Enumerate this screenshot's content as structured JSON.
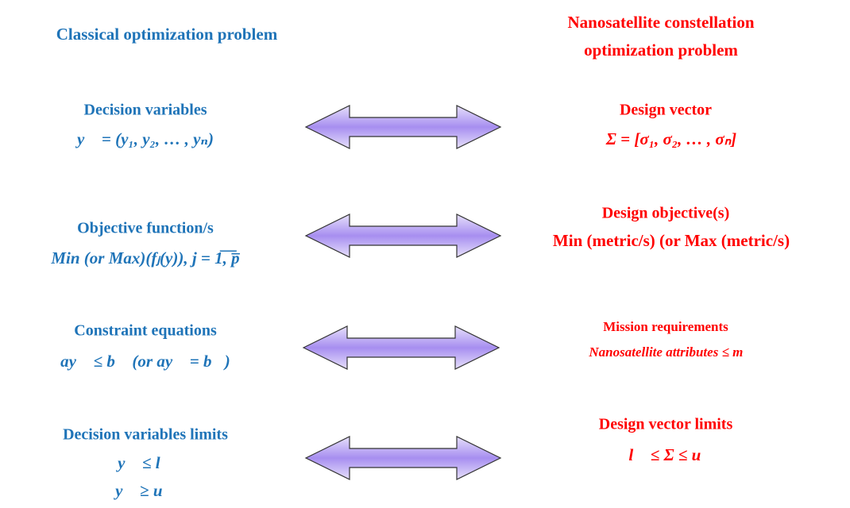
{
  "left_header": "Classical optimization problem",
  "right_header": [
    "Nanosatellite constellation",
    "optimization problem"
  ],
  "rows": [
    {
      "left": {
        "title": "Decision variables",
        "formula": [
          "y⃗ = (y₁, y₂, … , yₙ)"
        ]
      },
      "right": {
        "title": "Design vector",
        "formula": [
          "Σ = [σ₁, σ₂, … , σₙ]"
        ]
      }
    },
    {
      "left": {
        "title": "Objective function/s",
        "formula": [
          "Min (or Max)(fⱼ(y)), j = 1̅,̅ ̅p̅"
        ]
      },
      "right": {
        "title": "Design objective(s)",
        "formula": [
          "Min (metric/s) (or Max (metric/s)"
        ]
      }
    },
    {
      "left": {
        "title": "Constraint equations",
        "formula": [
          "ay⃗ ≤ b⃗ (or ay⃗ = b⃗)"
        ]
      },
      "right": {
        "title": "Mission requirements",
        "formula": [
          "Nanosatellite attributes ≤ m⃗"
        ]
      }
    },
    {
      "left": {
        "title": "Decision variables limits",
        "formula": [
          "y⃗ ≤ l⃗",
          "y⃗ ≥ u⃗"
        ]
      },
      "right": {
        "title": "Design vector limits",
        "formula": [
          "l⃗ ≤ Σ ≤ u⃗"
        ]
      }
    }
  ]
}
